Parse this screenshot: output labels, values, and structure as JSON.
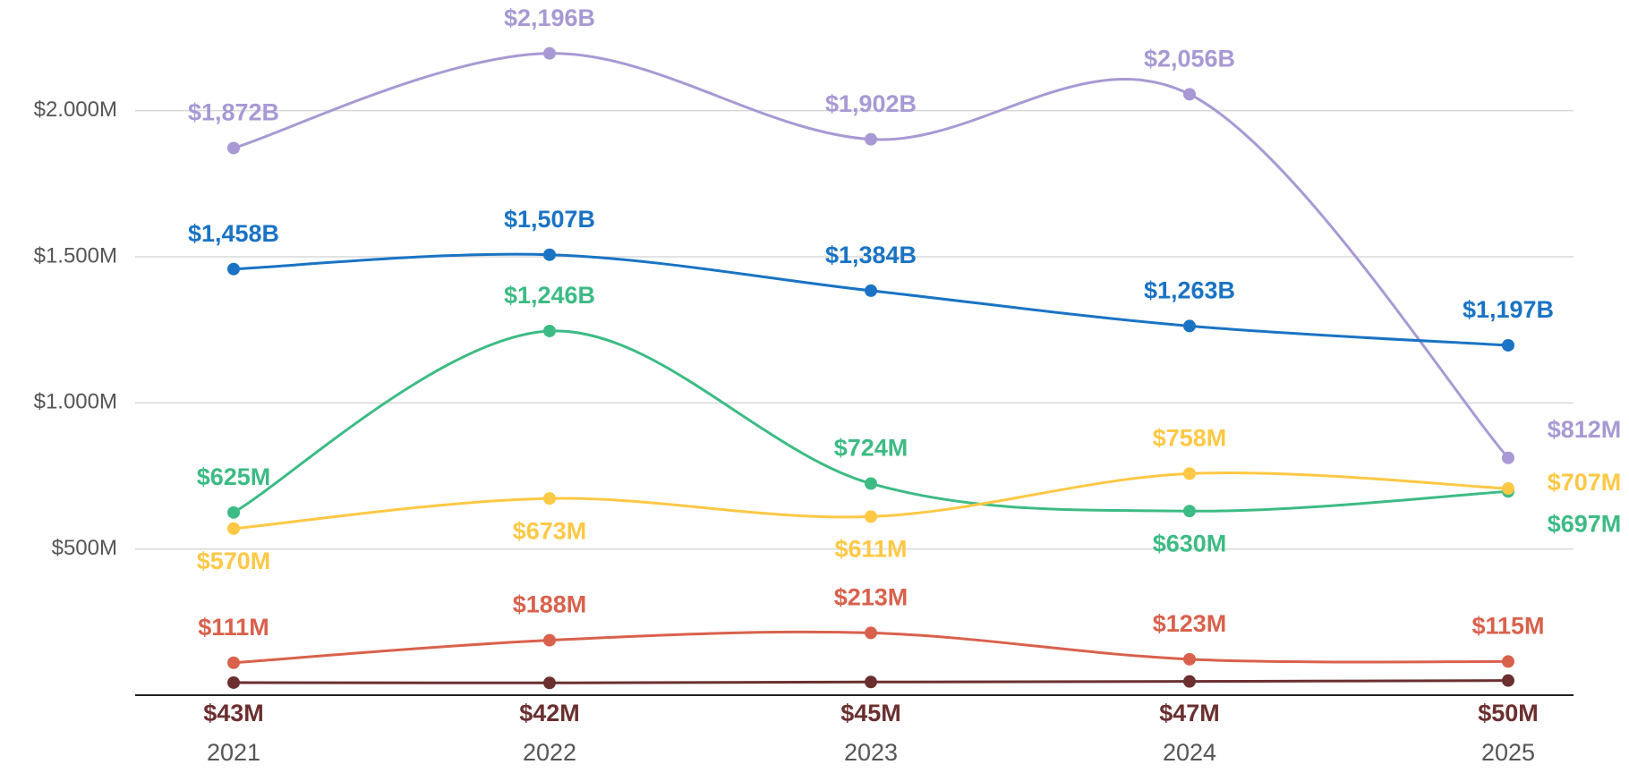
{
  "chart_data": {
    "type": "line",
    "categories": [
      "2021",
      "2022",
      "2023",
      "2024",
      "2025"
    ],
    "series": [
      {
        "color": "#a899d4",
        "values": [
          1872,
          2196,
          1902,
          2056,
          812
        ],
        "value_labels": [
          "$1,872B",
          "$2,196B",
          "$1,902B",
          "$2,056B",
          "$812M"
        ]
      },
      {
        "color": "#1a73c4",
        "values": [
          1458,
          1507,
          1384,
          1263,
          1197
        ],
        "value_labels": [
          "$1,458B",
          "$1,507B",
          "$1,384B",
          "$1,263B",
          "$1,197B"
        ]
      },
      {
        "color": "#3dbb84",
        "values": [
          625,
          1246,
          724,
          630,
          697
        ],
        "value_labels": [
          "$625M",
          "$1,246B",
          "$724M",
          "$630M",
          "$697M"
        ]
      },
      {
        "color": "#ffc845",
        "values": [
          570,
          673,
          611,
          758,
          707
        ],
        "value_labels": [
          "$570M",
          "$673M",
          "$611M",
          "$758M",
          "$707M"
        ]
      },
      {
        "color": "#d9614c",
        "values": [
          111,
          188,
          213,
          123,
          115
        ],
        "value_labels": [
          "$111M",
          "$188M",
          "$213M",
          "$123M",
          "$115M"
        ]
      },
      {
        "color": "#6b2f2f",
        "values": [
          43,
          42,
          45,
          47,
          50
        ],
        "value_labels": [
          "$43M",
          "$42M",
          "$45M",
          "$47M",
          "$50M"
        ]
      }
    ],
    "ylim": [
      0,
      2250
    ],
    "yticks": [
      {
        "value": 500,
        "label": "$500M"
      },
      {
        "value": 1000,
        "label": "$1.000M"
      },
      {
        "value": 1500,
        "label": "$1.500M"
      },
      {
        "value": 2000,
        "label": "$2.000M"
      }
    ],
    "grid": true
  }
}
